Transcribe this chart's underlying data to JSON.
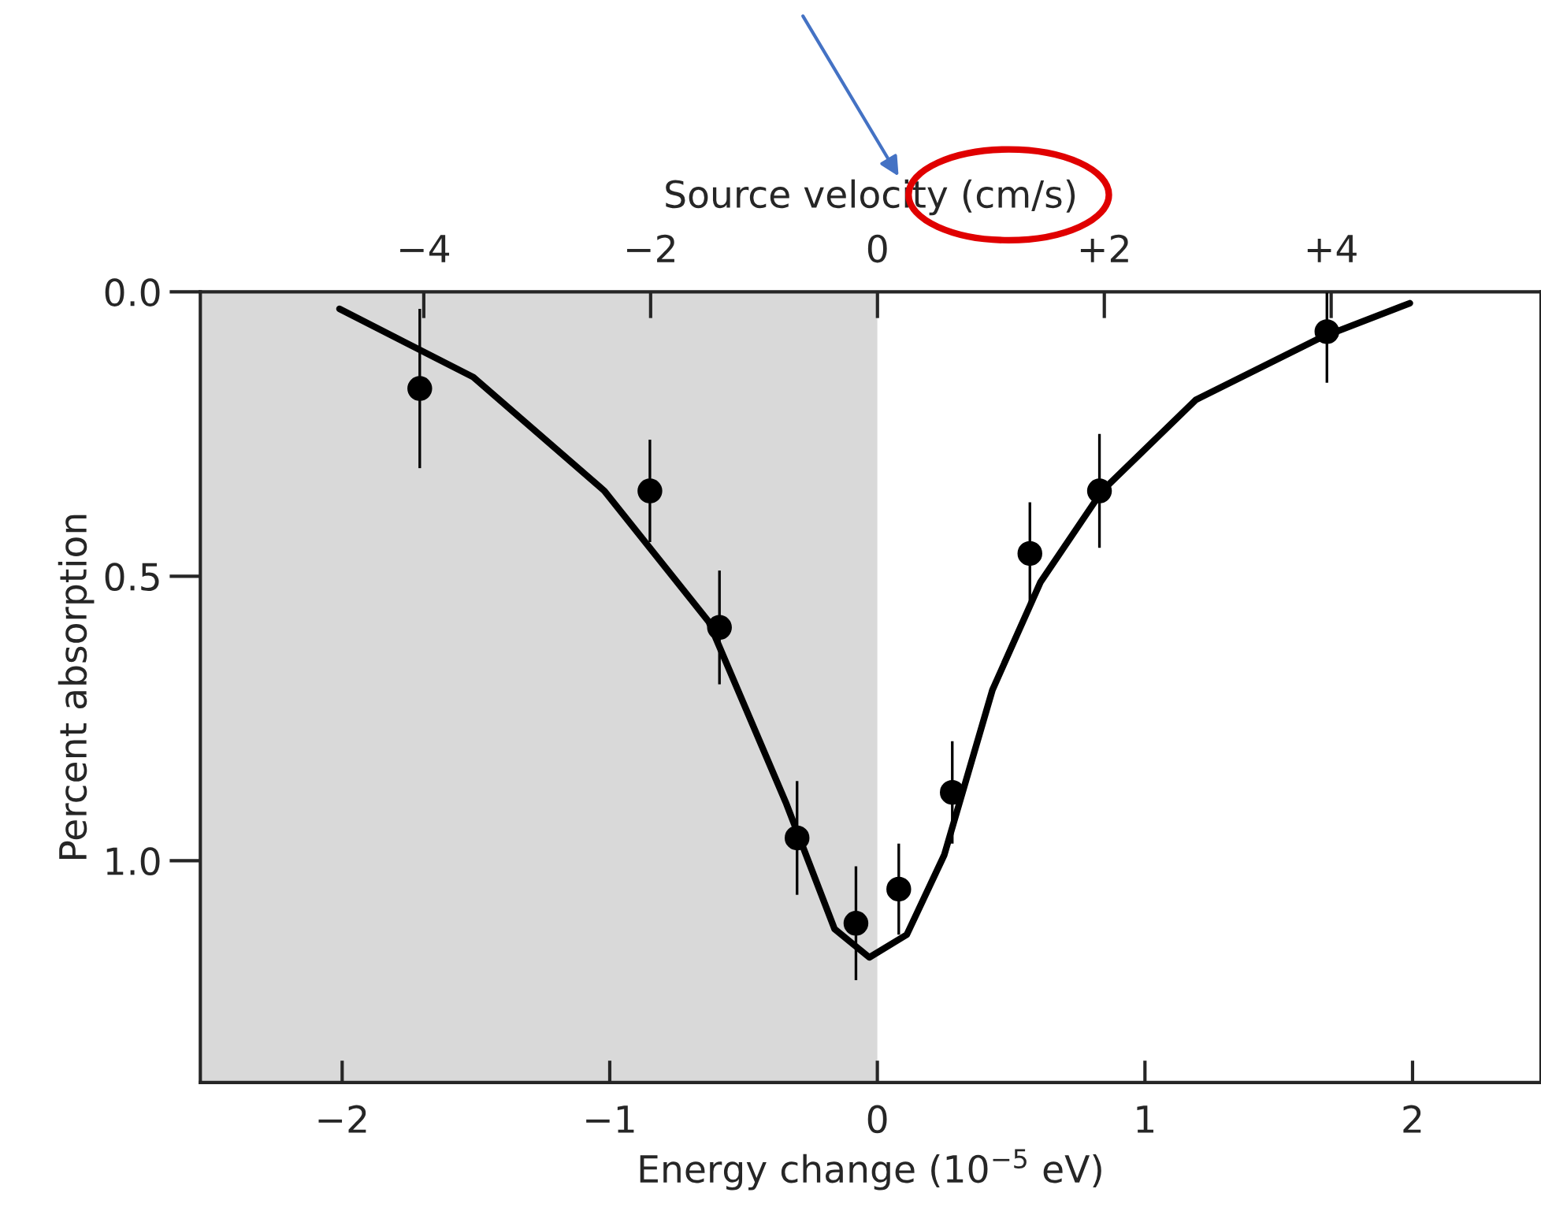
{
  "chart_data": {
    "type": "scatter",
    "xlabel": "Energy change (10$^{−5}$ eV)",
    "ylabel": "Percent absorption",
    "x2label": "Source velocity (cm/s)",
    "xlim": [
      -2.53,
      2.48
    ],
    "xticks": [
      {
        "value": -2,
        "label": "−2"
      },
      {
        "value": -1,
        "label": "−1"
      },
      0,
      1,
      2
    ],
    "x2lim": [
      -5.97,
      5.85
    ],
    "x2ticks": [
      {
        "value": -4,
        "label": "−4"
      },
      {
        "value": -2,
        "label": "−2"
      },
      0,
      {
        "value": 2,
        "label": "+2"
      },
      {
        "value": 4,
        "label": "+4"
      }
    ],
    "ylim": [
      1.39,
      0.0
    ],
    "yticks": [
      {
        "value": 0,
        "label": "0.0"
      },
      0.5,
      {
        "value": 1,
        "label": "1.0"
      }
    ],
    "grid": false,
    "bands": [
      {
        "axis": "x",
        "from": -2.53,
        "to": 0,
        "color": "#d9d9d9"
      }
    ],
    "series": [
      {
        "color": "#000000",
        "marker": "circle",
        "x": [
          -1.71,
          -0.85,
          -0.59,
          -0.3,
          -0.08,
          0.08,
          0.28,
          0.57,
          0.83,
          1.68
        ],
        "values": [
          0.17,
          0.35,
          0.59,
          0.96,
          1.11,
          1.05,
          0.88,
          0.46,
          0.35,
          0.07
        ],
        "errors": [
          0.14,
          0.09,
          0.1,
          0.1,
          0.1,
          0.08,
          0.09,
          0.09,
          0.1,
          0.09
        ]
      },
      {
        "type": "line",
        "color": "#000000",
        "marker": "none",
        "line_style": "solid",
        "x": [
          -2.01,
          -1.51,
          -1.02,
          -0.63,
          -0.34,
          -0.16,
          -0.03,
          0.11,
          0.25,
          0.43,
          0.61,
          0.84,
          1.19,
          1.66,
          1.99
        ],
        "values": [
          0.03,
          0.15,
          0.35,
          0.58,
          0.9,
          1.12,
          1.17,
          1.13,
          0.99,
          0.7,
          0.51,
          0.35,
          0.19,
          0.08,
          0.02
        ]
      }
    ]
  }
}
